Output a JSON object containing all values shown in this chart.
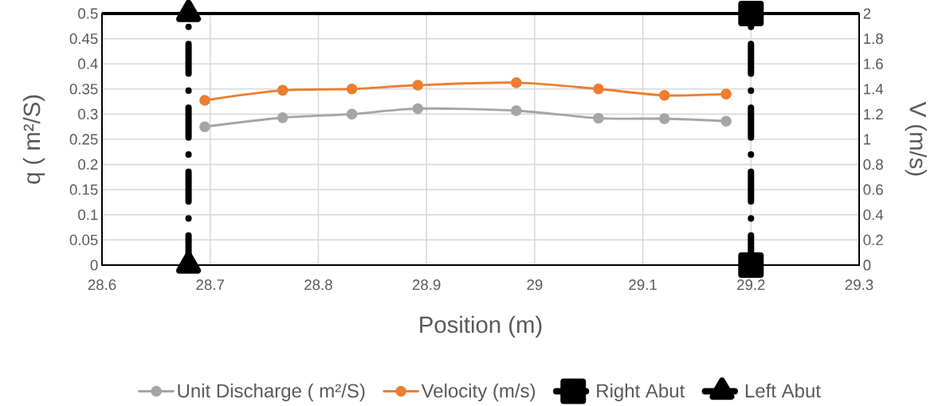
{
  "chart_data": {
    "type": "line",
    "xlabel": "Position (m)",
    "ylabel": "q ( m²/S)",
    "y2label": "V (m/s)",
    "xlim": [
      28.6,
      29.3
    ],
    "xticks": [
      28.6,
      28.7,
      28.8,
      28.9,
      29,
      29.1,
      29.2,
      29.3
    ],
    "ylim": [
      0,
      0.5
    ],
    "yticks": [
      0,
      0.05,
      0.1,
      0.15,
      0.2,
      0.25,
      0.3,
      0.35,
      0.4,
      0.45,
      0.5
    ],
    "y2lim": [
      0,
      2
    ],
    "y2ticks": [
      0,
      0.2,
      0.4,
      0.6,
      0.8,
      1,
      1.2,
      1.4,
      1.6,
      1.8,
      2
    ],
    "grid": true,
    "legend": "bottom",
    "series": [
      {
        "name": "Unit Discharge ( m²/S)",
        "color": "#a5a5a5",
        "marker": "circle",
        "line_style": "solid",
        "x": [
          28.695,
          28.767,
          28.831,
          28.892,
          28.983,
          29.059,
          29.12,
          29.177
        ],
        "values": [
          0.275,
          0.293,
          0.3,
          0.311,
          0.307,
          0.292,
          0.291,
          0.286
        ]
      },
      {
        "name": "Velocity (m/s)",
        "color": "#ed7d31",
        "marker": "circle",
        "line_style": "solid",
        "axis": "y2",
        "x": [
          28.695,
          28.767,
          28.831,
          28.892,
          28.983,
          29.059,
          29.12,
          29.177
        ],
        "values": [
          1.31,
          1.39,
          1.4,
          1.43,
          1.45,
          1.4,
          1.35,
          1.36
        ]
      },
      {
        "name": "Right Abut",
        "color": "#000000",
        "marker": "square",
        "line_style": "dashdot",
        "x": [
          29.2,
          29.2
        ],
        "values": [
          0,
          0.5
        ]
      },
      {
        "name": "Left Abut",
        "color": "#000000",
        "marker": "triangle",
        "line_style": "dashdot",
        "x": [
          28.68,
          28.68
        ],
        "values": [
          0,
          0.5
        ]
      }
    ]
  }
}
